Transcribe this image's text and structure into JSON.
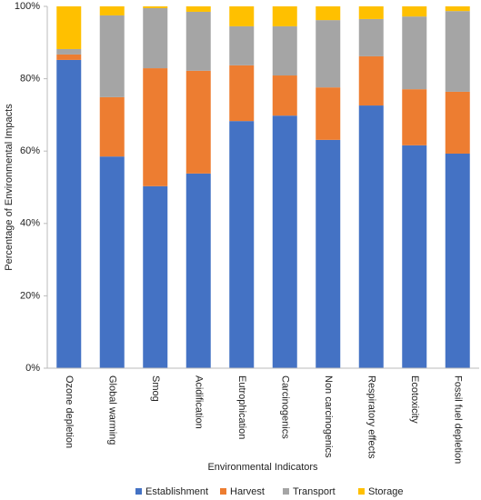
{
  "chart_data": {
    "type": "stacked_bar",
    "x_label": "Environmental Indicators",
    "y_label": "Percentage of Environmental Impacts",
    "categories": [
      "Ozone depletion",
      "Global warming",
      "Smog",
      "Acidification",
      "Eutrophication",
      "Carcinogenics",
      "Non carcinogenics",
      "Respiratory effects",
      "Ecotoxicity",
      "Fossil fuel depletion"
    ],
    "series": [
      {
        "name": "Establishment",
        "color": "#4472c4",
        "values": [
          85.2,
          58.5,
          50.3,
          53.8,
          68.3,
          69.8,
          63.1,
          72.6,
          61.6,
          59.3
        ]
      },
      {
        "name": "Harvest",
        "color": "#ed7d31",
        "values": [
          1.5,
          16.4,
          32.6,
          28.4,
          15.4,
          11.1,
          14.5,
          13.6,
          15.5,
          17.1
        ]
      },
      {
        "name": "Transport",
        "color": "#a5a5a5",
        "values": [
          1.5,
          22.6,
          16.6,
          16.3,
          10.8,
          13.6,
          18.6,
          10.3,
          20.1,
          22.3
        ]
      },
      {
        "name": "Storage",
        "color": "#ffc000",
        "values": [
          11.8,
          2.5,
          0.5,
          1.5,
          5.5,
          5.5,
          3.8,
          3.5,
          2.8,
          1.3
        ]
      }
    ],
    "ylim": [
      0,
      100
    ],
    "yticks": [
      {
        "value": 0,
        "label": "0%"
      },
      {
        "value": 20,
        "label": "20%"
      },
      {
        "value": 40,
        "label": "40%"
      },
      {
        "value": 60,
        "label": "60%"
      },
      {
        "value": 80,
        "label": "80%"
      },
      {
        "value": 100,
        "label": "100%"
      }
    ],
    "legend": "bottom"
  }
}
